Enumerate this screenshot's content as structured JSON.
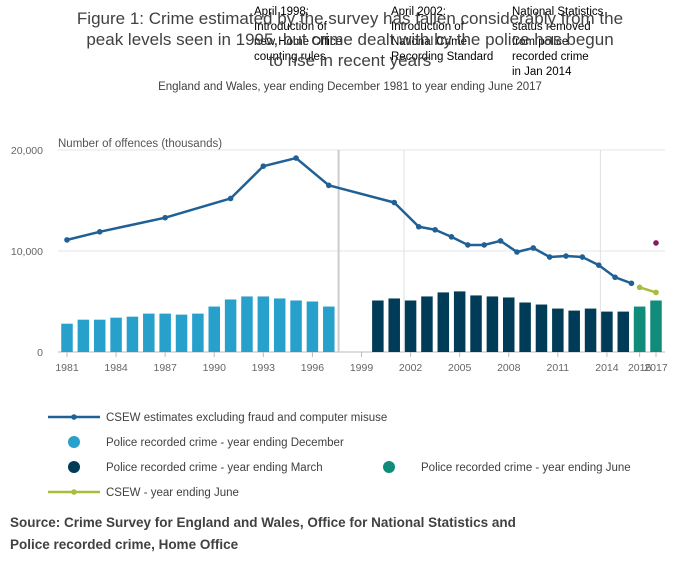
{
  "chart_data": {
    "type": "bar",
    "title": "Figure 1: Crime estimated by the survey has fallen considerably from the peak levels seen in 1995, but crime dealt with by the police has begun to rise in recent years",
    "subtitle": "England and Wales, year ending December 1981 to year ending June 2017",
    "ylabel": "Number of offences (thousands)",
    "ylim": [
      0,
      20000
    ],
    "yticks": [
      "0",
      "10,000",
      "20,000"
    ],
    "xticks": [
      "1981",
      "1984",
      "1987",
      "1990",
      "1993",
      "1996",
      "1999",
      "2002",
      "2005",
      "2008",
      "2011",
      "2014",
      "2016",
      "2017"
    ],
    "grid": true,
    "legend_position": "bottom",
    "annotations": [
      {
        "year": 1998,
        "text": [
          "April 1998:",
          "Introduction of",
          "new Home Office",
          "counting rules"
        ]
      },
      {
        "year": 2002,
        "text": [
          "April 2002:",
          "Introduction of",
          "National Crime",
          "Recording Standard"
        ]
      },
      {
        "year": 2014,
        "text": [
          "National Statistics",
          "status removed",
          "from police",
          "recorded crime",
          "in Jan 2014"
        ]
      }
    ],
    "series": [
      {
        "name": "CSEW estimates excluding fraud and computer misuse",
        "type": "line",
        "color": "#206095",
        "x": [
          1981,
          1983,
          1987,
          1991,
          1993,
          1995,
          1997,
          2001,
          2002.5,
          2003.5,
          2004.5,
          2005.5,
          2006.5,
          2007.5,
          2008.5,
          2009.5,
          2010.5,
          2011.5,
          2012.5,
          2013.5,
          2014.5,
          2015.5
        ],
        "values": [
          11100,
          11900,
          13300,
          15200,
          18400,
          19200,
          16500,
          14800,
          12400,
          12100,
          11400,
          10600,
          10600,
          11000,
          9900,
          10300,
          9400,
          9500,
          9400,
          8600,
          7400,
          6800
        ]
      },
      {
        "name": "Police recorded crime - year ending December",
        "type": "bar",
        "color": "#27a0cc",
        "x": [
          1981,
          1982,
          1983,
          1984,
          1985,
          1986,
          1987,
          1988,
          1989,
          1990,
          1991,
          1992,
          1993,
          1994,
          1995,
          1996,
          1997
        ],
        "values": [
          2800,
          3200,
          3200,
          3400,
          3500,
          3800,
          3800,
          3700,
          3800,
          4500,
          5200,
          5500,
          5500,
          5300,
          5100,
          5000,
          4500
        ]
      },
      {
        "name": "Police recorded crime - year ending March",
        "type": "bar",
        "color": "#003c57",
        "x": [
          2000,
          2001,
          2002,
          2003,
          2004,
          2005,
          2006,
          2007,
          2008,
          2009,
          2010,
          2011,
          2012,
          2013,
          2014,
          2015,
          2016
        ],
        "values": [
          5100,
          5300,
          5100,
          5500,
          5900,
          6000,
          5600,
          5500,
          5400,
          4900,
          4700,
          4300,
          4100,
          4300,
          4000,
          4000,
          4100
        ]
      },
      {
        "name": "Police recorded crime - year ending June",
        "type": "bar",
        "color": "#118c7b",
        "x": [
          2016,
          2017
        ],
        "values": [
          4500,
          5100
        ]
      },
      {
        "name": "CSEW - year ending June",
        "type": "line",
        "color": "#a8bd3a",
        "x": [
          2016,
          2017
        ],
        "values": [
          6400,
          5900
        ]
      },
      {
        "name": "",
        "type": "scatter",
        "color": "#871a5b",
        "x": [
          2017
        ],
        "values": [
          10800
        ]
      }
    ]
  },
  "legend": [
    {
      "label": "CSEW estimates excluding fraud and computer misuse",
      "color": "#206095",
      "marker": "line"
    },
    {
      "label": "Police recorded crime - year ending December",
      "color": "#27a0cc",
      "marker": "circle"
    },
    {
      "label": "Police recorded crime - year ending March",
      "color": "#003c57",
      "marker": "circle"
    },
    {
      "label": "Police recorded crime - year ending June",
      "color": "#118c7b",
      "marker": "circle"
    },
    {
      "label": "CSEW - year ending June",
      "color": "#a8bd3a",
      "marker": "line"
    }
  ],
  "source": "Source: Crime Survey for England and Wales, Office for National Statistics and Police recorded crime, Home Office"
}
